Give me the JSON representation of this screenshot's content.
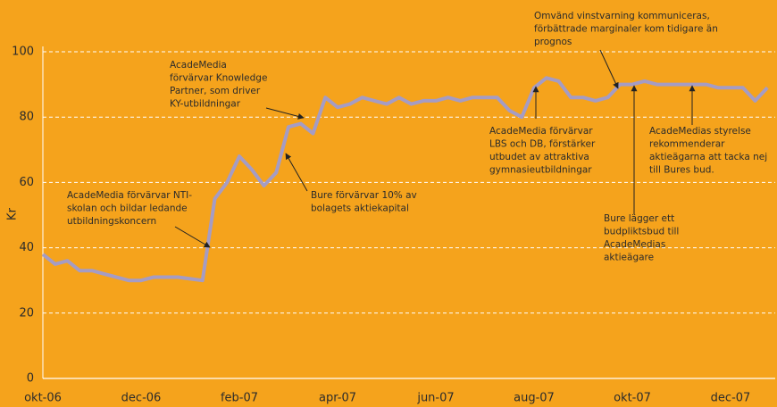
{
  "chart_data": {
    "type": "line",
    "y_label": "Kr",
    "categories": [
      "okt-06",
      null,
      null,
      null,
      null,
      null,
      null,
      null,
      "dec-06",
      null,
      null,
      null,
      null,
      null,
      null,
      null,
      "feb-07",
      null,
      null,
      null,
      null,
      null,
      null,
      null,
      "apr-07",
      null,
      null,
      null,
      null,
      null,
      null,
      null,
      "jun-07",
      null,
      null,
      null,
      null,
      null,
      null,
      null,
      "aug-07",
      null,
      null,
      null,
      null,
      null,
      null,
      null,
      "okt-07",
      null,
      null,
      null,
      null,
      null,
      null,
      null,
      "dec-07",
      null,
      null,
      null
    ],
    "values": [
      38,
      35,
      36,
      33,
      33,
      32,
      31,
      30,
      30,
      31,
      31,
      31,
      30.5,
      30,
      55,
      60,
      68,
      64,
      59,
      63,
      77,
      78,
      75,
      86,
      83,
      84,
      86,
      85,
      84,
      86,
      84,
      85,
      85,
      86,
      85,
      86,
      86,
      86,
      82,
      80,
      89,
      92,
      91,
      86,
      86,
      85,
      86,
      90,
      90,
      91,
      90,
      90,
      90,
      90,
      90,
      89,
      89,
      89,
      85,
      89
    ],
    "color": "#a59cc4",
    "ylim": [
      0,
      100
    ],
    "yticks": [
      0,
      20,
      40,
      60,
      80,
      100
    ],
    "grid": true,
    "annotations": [
      {
        "lines": [
          "AcadeMedia förvärvar NTI-",
          "skolan och bildar ledande",
          "utbildningskoncern"
        ]
      },
      {
        "lines": [
          "AcadeMedia",
          "förvärvar Knowledge",
          "Partner, som driver",
          "KY-utbildningar"
        ]
      },
      {
        "lines": [
          "Bure förvärvar 10% av",
          "bolagets aktiekapital"
        ]
      },
      {
        "lines": [
          "AcadeMedia förvärvar",
          "LBS och DB, förstärker",
          "utbudet av attraktiva",
          "gymnasieutbildningar"
        ]
      },
      {
        "lines": [
          "Omvänd vinstvarning kommuniceras,",
          "förbättrade marginaler kom tidigare än",
          "prognos"
        ]
      },
      {
        "lines": [
          "Bure lägger ett",
          "budpliktsbud till",
          "AcadeMedias",
          "aktieägare"
        ]
      },
      {
        "lines": [
          "AcadeMedias styrelse",
          "rekommenderar",
          "aktieägarna att tacka nej",
          "till Bures bud."
        ]
      }
    ]
  }
}
